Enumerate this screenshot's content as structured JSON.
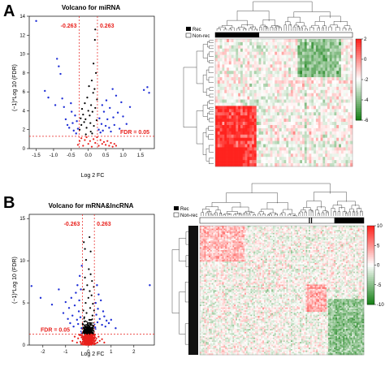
{
  "figure": {
    "panel_a": "A",
    "panel_b": "B",
    "legend_a": [
      "Rec",
      "Non-rec"
    ],
    "legend_b": [
      "Rec",
      "Non-rec"
    ],
    "colorbar_a_ticks": [
      "2",
      "0",
      "-2",
      "-4",
      "-6"
    ],
    "colorbar_b_ticks": [
      "10",
      "5",
      "0",
      "-5",
      "-10"
    ],
    "colors": {
      "down_up": "#1f2fd6",
      "significant": "#000000",
      "threshold": "#e8201c",
      "high": "#e8201c",
      "low": "#1a7a1a"
    }
  },
  "chart_data": [
    {
      "type": "scatter",
      "title": "Volcano for miRNA",
      "xlabel": "Log 2 FC",
      "ylabel": "(−1)*Log 10 (FDR)",
      "xlim": [
        -1.7,
        1.9
      ],
      "ylim": [
        0,
        14
      ],
      "xticks": [
        "-1.5",
        "-1.0",
        "-0.5",
        "0.0",
        "0.5",
        "1.0",
        "1.5"
      ],
      "yticks": [
        "0",
        "2",
        "4",
        "6",
        "8",
        "10",
        "12",
        "14"
      ],
      "vlines": [
        -0.263,
        0.263
      ],
      "hline": 1.3,
      "annotations": [
        "-0.263",
        "0.263",
        "FDR = 0.05"
      ],
      "blue_points": [
        [
          -1.5,
          13.5
        ],
        [
          -1.25,
          6.1
        ],
        [
          -1.15,
          5.4
        ],
        [
          -0.95,
          4.6
        ],
        [
          -0.9,
          9.5
        ],
        [
          -0.85,
          8.7
        ],
        [
          -0.8,
          7.9
        ],
        [
          -0.75,
          5.3
        ],
        [
          -0.7,
          4.4
        ],
        [
          -0.65,
          3.1
        ],
        [
          -0.6,
          2.5
        ],
        [
          -0.55,
          2.2
        ],
        [
          -0.5,
          4.8
        ],
        [
          -0.48,
          3.9
        ],
        [
          -0.45,
          2.7
        ],
        [
          -0.42,
          1.9
        ],
        [
          -0.38,
          3.5
        ],
        [
          -0.35,
          1.6
        ],
        [
          -0.33,
          2.9
        ],
        [
          -0.3,
          2.1
        ],
        [
          0.3,
          2.0
        ],
        [
          0.32,
          3.2
        ],
        [
          0.35,
          1.7
        ],
        [
          0.38,
          2.6
        ],
        [
          0.4,
          4.6
        ],
        [
          0.42,
          1.9
        ],
        [
          0.45,
          3.9
        ],
        [
          0.5,
          2.4
        ],
        [
          0.52,
          5.1
        ],
        [
          0.55,
          3.1
        ],
        [
          0.6,
          2.2
        ],
        [
          0.62,
          4.3
        ],
        [
          0.65,
          1.8
        ],
        [
          0.7,
          6.3
        ],
        [
          0.72,
          3.3
        ],
        [
          0.75,
          2.5
        ],
        [
          0.8,
          5.6
        ],
        [
          0.85,
          3.8
        ],
        [
          0.9,
          2.1
        ],
        [
          0.95,
          4.9
        ],
        [
          1.0,
          3.4
        ],
        [
          1.1,
          2.6
        ],
        [
          1.2,
          4.4
        ],
        [
          1.6,
          6.2
        ],
        [
          1.7,
          6.5
        ],
        [
          1.75,
          5.9
        ]
      ],
      "black_points": [
        [
          -0.25,
          2.0
        ],
        [
          -0.22,
          3.2
        ],
        [
          -0.2,
          2.5
        ],
        [
          -0.18,
          4.2
        ],
        [
          -0.15,
          3.6
        ],
        [
          -0.12,
          2.8
        ],
        [
          -0.1,
          4.8
        ],
        [
          -0.08,
          3.1
        ],
        [
          -0.05,
          2.2
        ],
        [
          -0.03,
          5.4
        ],
        [
          0.0,
          4.0
        ],
        [
          0.02,
          6.6
        ],
        [
          0.04,
          3.5
        ],
        [
          0.06,
          2.7
        ],
        [
          0.08,
          4.6
        ],
        [
          0.1,
          7.2
        ],
        [
          0.12,
          3.9
        ],
        [
          0.14,
          5.9
        ],
        [
          0.16,
          2.4
        ],
        [
          0.18,
          6.3
        ],
        [
          0.2,
          4.3
        ],
        [
          0.22,
          8.0
        ],
        [
          0.24,
          3.0
        ],
        [
          0.25,
          5.2
        ],
        [
          0.15,
          9.0
        ],
        [
          0.19,
          11.5
        ],
        [
          0.2,
          12.6
        ],
        [
          0.11,
          1.6
        ],
        [
          -0.07,
          1.5
        ],
        [
          0.07,
          1.8
        ]
      ],
      "red_points": [
        [
          -0.3,
          0.4
        ],
        [
          -0.25,
          0.8
        ],
        [
          -0.2,
          1.1
        ],
        [
          -0.15,
          0.3
        ],
        [
          -0.1,
          0.9
        ],
        [
          -0.05,
          1.2
        ],
        [
          0.0,
          0.5
        ],
        [
          0.05,
          0.8
        ],
        [
          0.1,
          0.2
        ],
        [
          0.15,
          1.0
        ],
        [
          0.2,
          0.6
        ],
        [
          0.25,
          1.2
        ],
        [
          0.3,
          0.3
        ],
        [
          0.35,
          0.9
        ],
        [
          0.4,
          0.5
        ],
        [
          0.45,
          0.7
        ],
        [
          0.5,
          0.4
        ],
        [
          0.55,
          0.8
        ],
        [
          0.6,
          0.3
        ],
        [
          0.65,
          0.6
        ],
        [
          0.7,
          0.2
        ],
        [
          0.75,
          0.5
        ],
        [
          0.8,
          0.3
        ]
      ]
    },
    {
      "type": "scatter",
      "title": "Volcano for mRNA&lncRNA",
      "xlabel": "Log 2 FC",
      "ylabel": "(−1)*Log 10 (FDR)",
      "xlim": [
        -2.6,
        2.9
      ],
      "ylim": [
        0,
        15.5
      ],
      "xticks": [
        "-2",
        "-1",
        "0",
        "1",
        "2"
      ],
      "yticks": [
        "0",
        "5",
        "10",
        "15"
      ],
      "vlines": [
        -0.263,
        0.263
      ],
      "hline": 1.3,
      "annotations": [
        "-0.263",
        "0.263",
        "FDR = 0.05"
      ],
      "blue_points": [
        [
          -2.5,
          7.0
        ],
        [
          -2.1,
          5.6
        ],
        [
          -1.6,
          4.8
        ],
        [
          -1.3,
          6.6
        ],
        [
          -1.1,
          3.8
        ],
        [
          -1.0,
          5.1
        ],
        [
          -0.9,
          3.1
        ],
        [
          -0.85,
          4.4
        ],
        [
          -0.8,
          2.6
        ],
        [
          -0.75,
          5.6
        ],
        [
          -0.7,
          3.5
        ],
        [
          -0.65,
          2.2
        ],
        [
          -0.6,
          4.7
        ],
        [
          -0.55,
          6.2
        ],
        [
          -0.5,
          3.0
        ],
        [
          -0.48,
          7.1
        ],
        [
          -0.45,
          2.5
        ],
        [
          -0.42,
          4.0
        ],
        [
          -0.4,
          5.3
        ],
        [
          -0.38,
          8.2
        ],
        [
          -0.35,
          3.3
        ],
        [
          -0.33,
          6.6
        ],
        [
          -0.3,
          2.0
        ],
        [
          -0.29,
          9.4
        ],
        [
          0.3,
          2.1
        ],
        [
          0.32,
          5.0
        ],
        [
          0.35,
          3.6
        ],
        [
          0.38,
          7.1
        ],
        [
          0.4,
          2.7
        ],
        [
          0.42,
          4.3
        ],
        [
          0.45,
          6.0
        ],
        [
          0.5,
          3.1
        ],
        [
          0.55,
          5.3
        ],
        [
          0.6,
          2.4
        ],
        [
          0.65,
          4.0
        ],
        [
          0.7,
          3.4
        ],
        [
          0.75,
          2.2
        ],
        [
          0.8,
          2.9
        ],
        [
          0.9,
          2.6
        ],
        [
          1.0,
          3.0
        ],
        [
          1.2,
          2.0
        ],
        [
          2.7,
          7.1
        ]
      ],
      "black_points": [
        [
          -0.25,
          2.5
        ],
        [
          -0.22,
          4.1
        ],
        [
          -0.2,
          6.6
        ],
        [
          -0.18,
          3.3
        ],
        [
          -0.15,
          8.0
        ],
        [
          -0.12,
          5.0
        ],
        [
          -0.1,
          10.1
        ],
        [
          -0.08,
          3.8
        ],
        [
          -0.05,
          7.1
        ],
        [
          -0.03,
          2.1
        ],
        [
          0.0,
          5.6
        ],
        [
          0.02,
          9.0
        ],
        [
          0.04,
          3.0
        ],
        [
          0.06,
          6.4
        ],
        [
          0.08,
          4.4
        ],
        [
          0.1,
          8.4
        ],
        [
          0.12,
          2.6
        ],
        [
          0.14,
          5.9
        ],
        [
          0.16,
          7.6
        ],
        [
          0.18,
          3.5
        ],
        [
          0.2,
          4.9
        ],
        [
          0.22,
          2.3
        ],
        [
          0.24,
          6.9
        ],
        [
          0.25,
          4.1
        ],
        [
          -0.2,
          12.2
        ],
        [
          0.05,
          12.8
        ],
        [
          -0.15,
          11.4
        ],
        [
          0.1,
          11.1
        ]
      ],
      "red_points": [
        [
          -0.7,
          0.5
        ],
        [
          -0.6,
          1.0
        ],
        [
          -0.5,
          0.3
        ],
        [
          -0.45,
          0.8
        ],
        [
          -0.4,
          1.2
        ],
        [
          -0.35,
          0.4
        ],
        [
          -0.3,
          0.9
        ],
        [
          -0.25,
          0.2
        ],
        [
          -0.2,
          0.6
        ],
        [
          -0.15,
          1.1
        ],
        [
          -0.1,
          0.3
        ],
        [
          -0.05,
          0.7
        ],
        [
          0.0,
          1.0
        ],
        [
          0.05,
          0.4
        ],
        [
          0.1,
          0.9
        ],
        [
          0.15,
          0.2
        ],
        [
          0.2,
          0.6
        ],
        [
          0.25,
          1.2
        ],
        [
          0.3,
          0.5
        ],
        [
          0.35,
          0.8
        ],
        [
          0.4,
          0.3
        ],
        [
          0.45,
          1.0
        ],
        [
          0.5,
          0.5
        ],
        [
          0.6,
          0.7
        ],
        [
          0.7,
          0.3
        ]
      ]
    },
    {
      "type": "heatmap",
      "rows": 40,
      "cols": 60,
      "color_range": [
        -6,
        2
      ],
      "legend": [
        "Rec",
        "Non-rec"
      ],
      "colorbar_ticks": [
        "2",
        "0",
        "-2",
        "-4",
        "-6"
      ]
    },
    {
      "type": "heatmap",
      "rows": 90,
      "cols": 110,
      "color_range": [
        -10,
        10
      ],
      "legend": [
        "Rec",
        "Non-rec"
      ],
      "colorbar_ticks": [
        "10",
        "5",
        "0",
        "-5",
        "-10"
      ]
    }
  ]
}
